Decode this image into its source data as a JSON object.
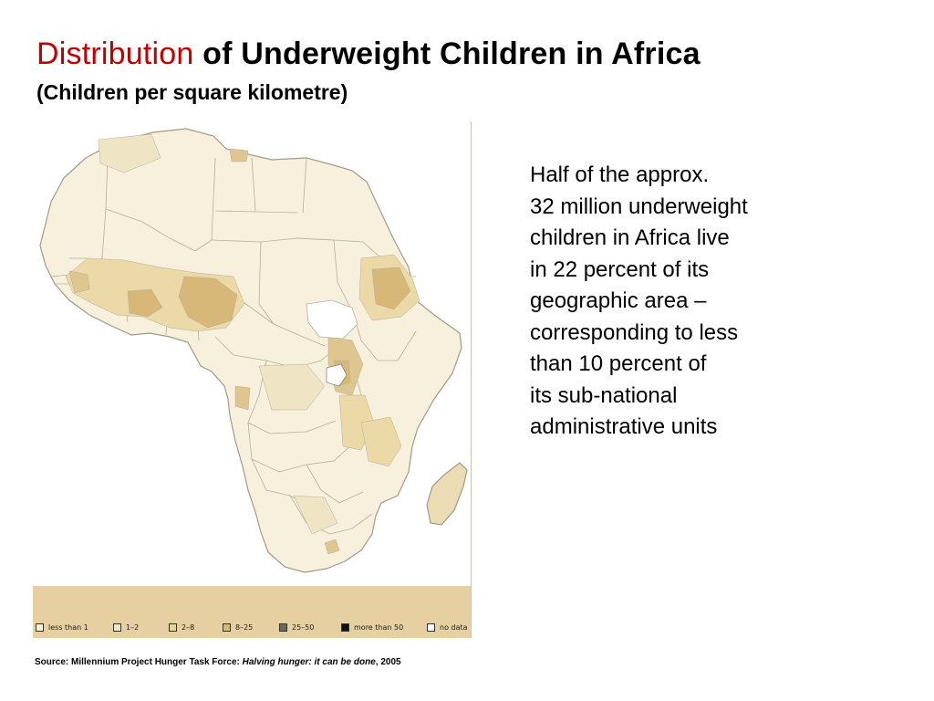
{
  "title": {
    "highlight": "Distribution",
    "rest": "of Underweight Children in Africa"
  },
  "subtitle": "(Children per square kilometre)",
  "body_lines": [
    "Half of the approx.",
    "32 million underweight",
    "children in Africa live",
    "in 22 percent of its",
    "geographic area –",
    "corresponding to less",
    "than 10 percent of",
    "its sub-national",
    "administrative units"
  ],
  "legend": [
    {
      "label": "less than 1",
      "color": "#f6f0dc"
    },
    {
      "label": "1–2",
      "color": "#efe4c4"
    },
    {
      "label": "2–8",
      "color": "#e6d3a4"
    },
    {
      "label": "8–25",
      "color": "#d8b878"
    },
    {
      "label": "25–50",
      "color": "#6b6b55"
    },
    {
      "label": "more than 50",
      "color": "#111111"
    },
    {
      "label": "no data",
      "color": "#ffffff"
    }
  ],
  "source": {
    "prefix": "Source: Millennium Project Hunger Task Force: ",
    "work": "Halving hunger: it can be done",
    "suffix": ", 2005"
  },
  "colors": {
    "title_highlight": "#c00000",
    "map_background": "#f6f0dc",
    "legend_background": "#e6cfa0",
    "water": "#ffffff"
  },
  "icons": [
    "africa-map",
    "madagascar-shape",
    "lake-victoria-shape"
  ]
}
